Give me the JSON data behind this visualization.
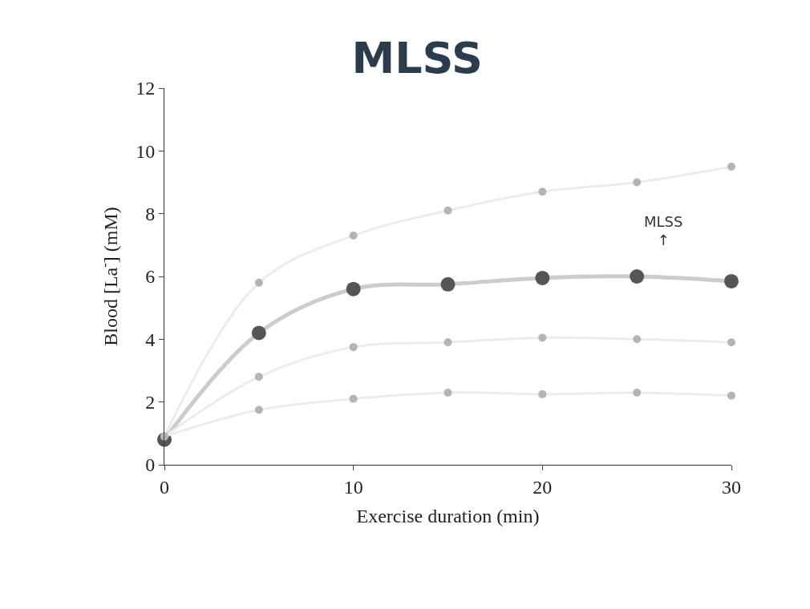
{
  "chart_data": {
    "type": "line",
    "title": "MLSS",
    "xlabel": "Exercise duration (min)",
    "ylabel": "Blood [La$^{-}$] (mM)",
    "x": [
      0,
      5,
      10,
      15,
      20,
      25,
      30
    ],
    "series": [
      {
        "color": "#b4b4b4",
        "values": [
          0.9,
          5.8,
          7.3,
          8.1,
          8.7,
          9.0,
          9.5
        ]
      },
      {
        "color": "#555555",
        "values": [
          0.8,
          4.2,
          5.6,
          5.75,
          5.95,
          6.0,
          5.85
        ]
      },
      {
        "color": "#b4b4b4",
        "values": [
          0.9,
          2.8,
          3.75,
          3.9,
          4.05,
          4.0,
          3.9
        ]
      },
      {
        "color": "#b4b4b4",
        "values": [
          0.9,
          1.75,
          2.1,
          2.3,
          2.25,
          2.3,
          2.2
        ]
      }
    ],
    "annotations": [
      "MLSS\n↑"
    ],
    "xlim": [
      0,
      30
    ],
    "ylim": [
      0,
      12
    ],
    "xticks": [
      0,
      10,
      20,
      30
    ],
    "yticks": [
      0,
      2,
      4,
      6,
      8,
      10,
      12
    ],
    "marker": "circle",
    "line_style": "solid"
  }
}
